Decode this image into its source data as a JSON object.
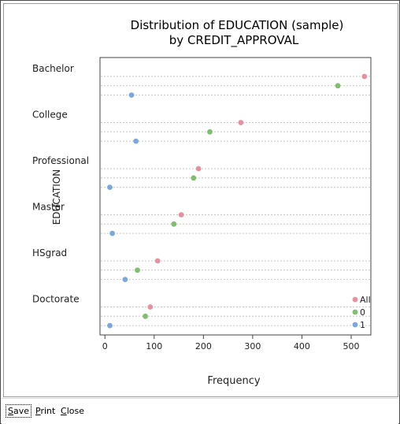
{
  "window": {
    "buttons": {
      "save": "Save",
      "print": "Print",
      "close": "Close"
    }
  },
  "chart_data": {
    "type": "scatter",
    "title_line1": "Distribution of EDUCATION (sample)",
    "title_line2": "by CREDIT_APPROVAL",
    "xlabel": "Frequency",
    "ylabel": "EDUCATION",
    "xlim": [
      -10,
      540
    ],
    "xticks": [
      0,
      100,
      200,
      300,
      400,
      500
    ],
    "categories": [
      "Bachelor",
      "College",
      "Professional",
      "Master",
      "HSgrad",
      "Doctorate"
    ],
    "series": [
      {
        "name": "All",
        "color": "#e8909f",
        "values": [
          527,
          276,
          190,
          155,
          107,
          92
        ]
      },
      {
        "name": "0",
        "color": "#7fbf6e",
        "values": [
          473,
          213,
          180,
          140,
          66,
          82
        ]
      },
      {
        "name": "1",
        "color": "#7aa8dc",
        "values": [
          54,
          63,
          10,
          15,
          41,
          10
        ]
      }
    ],
    "grid": "horizontal dotted per point",
    "legend": "bottom-right inside plot"
  }
}
